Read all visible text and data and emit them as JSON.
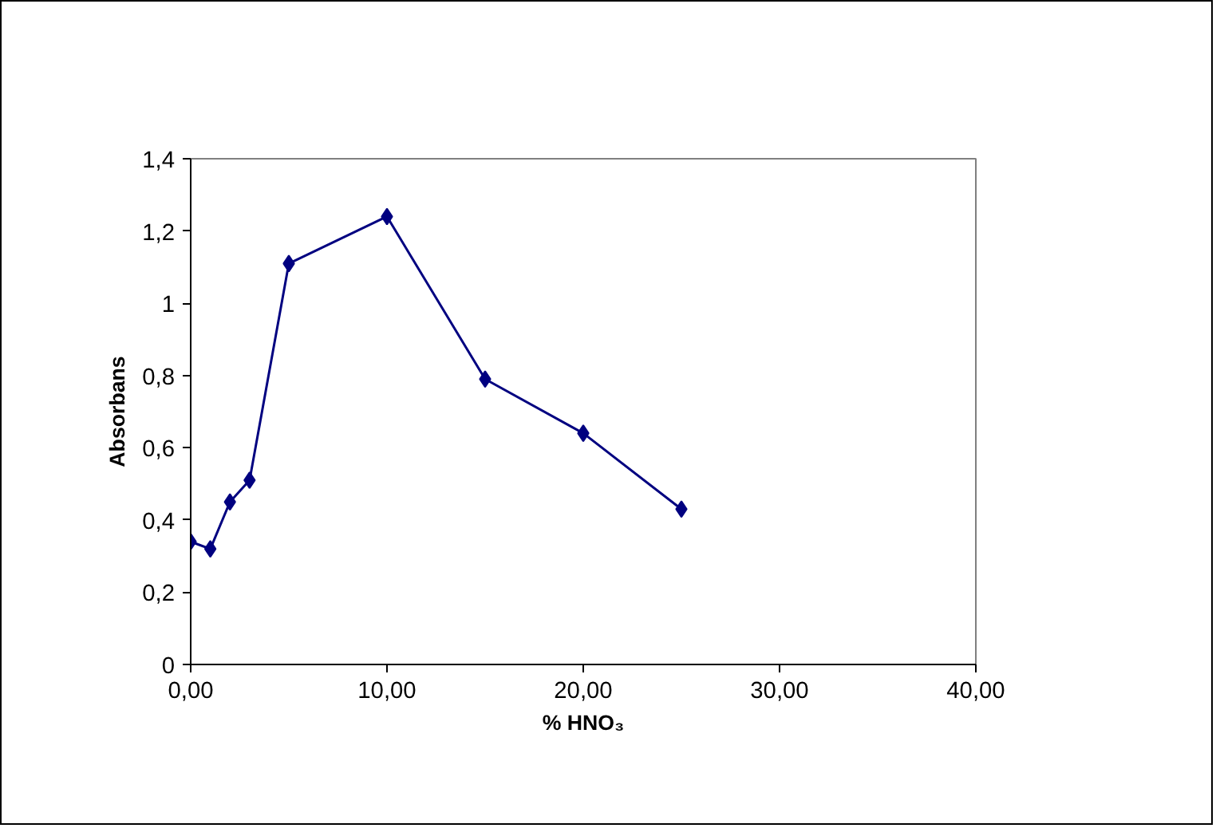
{
  "chart_data": {
    "type": "line",
    "xlabel": "% HNO₃",
    "ylabel": "Absorbans",
    "x": [
      0,
      1,
      2,
      3,
      5,
      10,
      15,
      20,
      25
    ],
    "series": [
      {
        "color": "#000080",
        "values": [
          0.34,
          0.32,
          0.45,
          0.51,
          1.11,
          1.24,
          0.79,
          0.64,
          0.43
        ]
      }
    ],
    "xlim": [
      0,
      40
    ],
    "xticks": [
      {
        "value": 0,
        "label": "0,00"
      },
      {
        "value": 10,
        "label": "10,00"
      },
      {
        "value": 20,
        "label": "20,00"
      },
      {
        "value": 30,
        "label": "30,00"
      },
      {
        "value": 40,
        "label": "40,00"
      }
    ],
    "ylim": [
      0,
      1.4
    ],
    "yticks": [
      0,
      {
        "value": 0.2,
        "label": "0,2"
      },
      {
        "value": 0.4,
        "label": "0,4"
      },
      {
        "value": 0.6,
        "label": "0,6"
      },
      {
        "value": 0.8,
        "label": "0,8"
      },
      1,
      {
        "value": 1.2,
        "label": "1,2"
      },
      {
        "value": 1.4,
        "label": "1,4"
      }
    ],
    "grid": false,
    "marker": "diamond",
    "line_style": "solid"
  }
}
